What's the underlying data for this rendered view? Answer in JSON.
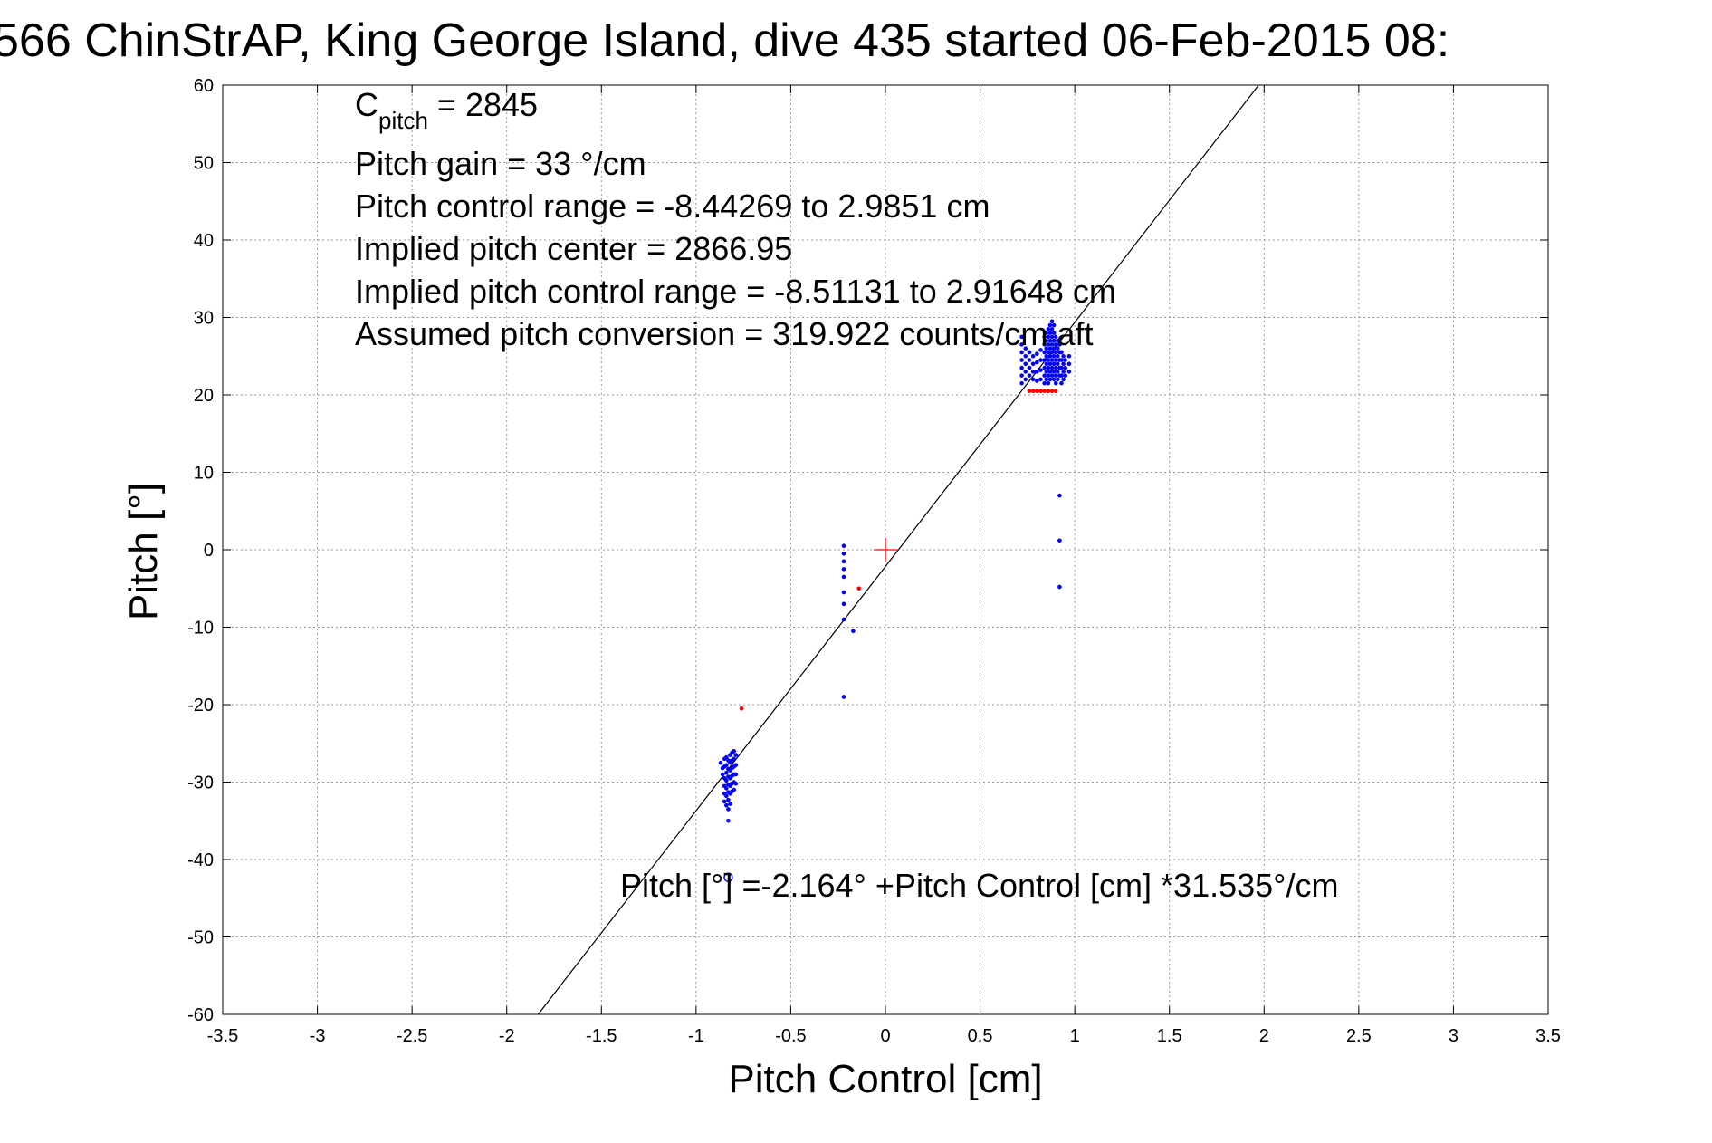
{
  "chart_data": {
    "type": "scatter",
    "title": "566 ChinStrAP, King George Island, dive 435 started 06-Feb-2015 08:",
    "xlabel": "Pitch Control [cm]",
    "ylabel": "Pitch [°]",
    "xlim": [
      -3.5,
      3.5
    ],
    "ylim": [
      -60,
      60
    ],
    "xticks": [
      -3.5,
      -3,
      -2.5,
      -2,
      -1.5,
      -1,
      -0.5,
      0,
      0.5,
      1,
      1.5,
      2,
      2.5,
      3,
      3.5
    ],
    "yticks": [
      -60,
      -50,
      -40,
      -30,
      -20,
      -10,
      0,
      10,
      20,
      30,
      40,
      50,
      60
    ],
    "xtick_labels": [
      "-3.5",
      "-3",
      "-2.5",
      "-2",
      "-1.5",
      "-1",
      "-0.5",
      "0",
      "0.5",
      "1",
      "1.5",
      "2",
      "2.5",
      "3",
      "3.5"
    ],
    "ytick_labels": [
      "-60",
      "-50",
      "-40",
      "-30",
      "-20",
      "-10",
      "0",
      "10",
      "20",
      "30",
      "40",
      "50",
      "60"
    ],
    "grid": true,
    "annotations": {
      "cpitch_prefix": "C",
      "cpitch_sub": "pitch",
      "cpitch_value": " = 2845",
      "line2": "Pitch gain = 33 °/cm",
      "line3": "Pitch control range = -8.44269 to 2.9851 cm",
      "line4": "Implied pitch center = 2866.95",
      "line5": "Implied pitch control range = -8.51131 to 2.91648 cm",
      "line6": "Assumed pitch conversion = 319.922 counts/cm aft",
      "fit_equation": "Pitch [°] =-2.164° +Pitch Control [cm] *31.535°/cm"
    },
    "fit": {
      "intercept": -2.164,
      "slope": 31.535
    },
    "center_marker": {
      "x": 0,
      "y": 0,
      "color": "#ff0000"
    },
    "open_marker": {
      "x": -0.83,
      "y": -42.3,
      "color": "#0000cc"
    },
    "series": [
      {
        "color": "#0000ff",
        "points": [
          [
            -0.87,
            -27.5
          ],
          [
            -0.86,
            -28.2
          ],
          [
            -0.86,
            -29.0
          ],
          [
            -0.85,
            -27.0
          ],
          [
            -0.85,
            -28.0
          ],
          [
            -0.85,
            -29.5
          ],
          [
            -0.85,
            -30.5
          ],
          [
            -0.85,
            -31.5
          ],
          [
            -0.85,
            -32.5
          ],
          [
            -0.84,
            -26.8
          ],
          [
            -0.84,
            -27.8
          ],
          [
            -0.84,
            -28.8
          ],
          [
            -0.84,
            -29.8
          ],
          [
            -0.84,
            -30.8
          ],
          [
            -0.84,
            -31.8
          ],
          [
            -0.84,
            -33.0
          ],
          [
            -0.83,
            -27.2
          ],
          [
            -0.83,
            -28.3
          ],
          [
            -0.83,
            -29.3
          ],
          [
            -0.83,
            -30.3
          ],
          [
            -0.83,
            -31.3
          ],
          [
            -0.83,
            -32.3
          ],
          [
            -0.83,
            -33.5
          ],
          [
            -0.83,
            -35.0
          ],
          [
            -0.82,
            -26.5
          ],
          [
            -0.82,
            -27.5
          ],
          [
            -0.82,
            -28.5
          ],
          [
            -0.82,
            -29.5
          ],
          [
            -0.82,
            -30.5
          ],
          [
            -0.82,
            -31.5
          ],
          [
            -0.82,
            -32.8
          ],
          [
            -0.81,
            -26.2
          ],
          [
            -0.81,
            -27.2
          ],
          [
            -0.81,
            -28.2
          ],
          [
            -0.81,
            -29.2
          ],
          [
            -0.81,
            -30.2
          ],
          [
            -0.81,
            -31.2
          ],
          [
            -0.8,
            -26.0
          ],
          [
            -0.8,
            -27.0
          ],
          [
            -0.8,
            -28.0
          ],
          [
            -0.8,
            -29.0
          ],
          [
            -0.8,
            -30.0
          ],
          [
            -0.8,
            -31.0
          ],
          [
            -0.79,
            -26.5
          ],
          [
            -0.79,
            -27.8
          ],
          [
            -0.79,
            -29.0
          ],
          [
            -0.79,
            -30.2
          ],
          [
            -0.22,
            0.5
          ],
          [
            -0.22,
            -0.5
          ],
          [
            -0.22,
            -1.5
          ],
          [
            -0.22,
            -2.5
          ],
          [
            -0.22,
            -3.5
          ],
          [
            -0.22,
            -5.5
          ],
          [
            -0.22,
            -7.0
          ],
          [
            -0.22,
            -9.0
          ],
          [
            -0.22,
            -19.0
          ],
          [
            -0.17,
            -10.5
          ],
          [
            0.92,
            7.0
          ],
          [
            0.92,
            1.2
          ],
          [
            0.92,
            -4.8
          ],
          [
            0.72,
            21.5
          ],
          [
            0.72,
            22.5
          ],
          [
            0.72,
            23.5
          ],
          [
            0.72,
            24.5
          ],
          [
            0.72,
            25.5
          ],
          [
            0.72,
            26.5
          ],
          [
            0.72,
            27.5
          ],
          [
            0.74,
            22.0
          ],
          [
            0.74,
            23.0
          ],
          [
            0.74,
            24.0
          ],
          [
            0.74,
            25.0
          ],
          [
            0.74,
            26.0
          ],
          [
            0.76,
            22.5
          ],
          [
            0.76,
            23.5
          ],
          [
            0.76,
            24.5
          ],
          [
            0.76,
            25.5
          ],
          [
            0.78,
            22.0
          ],
          [
            0.78,
            23.0
          ],
          [
            0.78,
            24.0
          ],
          [
            0.78,
            25.0
          ],
          [
            0.8,
            21.8
          ],
          [
            0.8,
            23.0
          ],
          [
            0.8,
            24.2
          ],
          [
            0.8,
            25.3
          ],
          [
            0.82,
            22.0
          ],
          [
            0.82,
            23.2
          ],
          [
            0.82,
            24.5
          ],
          [
            0.82,
            25.8
          ],
          [
            0.84,
            21.5
          ],
          [
            0.84,
            22.5
          ],
          [
            0.84,
            23.5
          ],
          [
            0.84,
            24.5
          ],
          [
            0.84,
            25.5
          ],
          [
            0.84,
            26.5
          ],
          [
            0.84,
            27.5
          ],
          [
            0.85,
            22.0
          ],
          [
            0.85,
            23.0
          ],
          [
            0.85,
            24.0
          ],
          [
            0.85,
            25.0
          ],
          [
            0.85,
            26.0
          ],
          [
            0.85,
            27.0
          ],
          [
            0.85,
            28.0
          ],
          [
            0.86,
            21.5
          ],
          [
            0.86,
            22.5
          ],
          [
            0.86,
            23.5
          ],
          [
            0.86,
            24.5
          ],
          [
            0.86,
            25.5
          ],
          [
            0.86,
            26.5
          ],
          [
            0.86,
            27.5
          ],
          [
            0.86,
            28.5
          ],
          [
            0.87,
            22.0
          ],
          [
            0.87,
            23.0
          ],
          [
            0.87,
            24.0
          ],
          [
            0.87,
            25.0
          ],
          [
            0.87,
            26.0
          ],
          [
            0.87,
            27.0
          ],
          [
            0.87,
            28.0
          ],
          [
            0.87,
            29.0
          ],
          [
            0.88,
            22.5
          ],
          [
            0.88,
            23.5
          ],
          [
            0.88,
            24.5
          ],
          [
            0.88,
            25.5
          ],
          [
            0.88,
            26.5
          ],
          [
            0.88,
            27.5
          ],
          [
            0.88,
            28.5
          ],
          [
            0.88,
            29.5
          ],
          [
            0.89,
            22.0
          ],
          [
            0.89,
            23.0
          ],
          [
            0.89,
            24.0
          ],
          [
            0.89,
            25.0
          ],
          [
            0.89,
            26.0
          ],
          [
            0.89,
            27.0
          ],
          [
            0.89,
            28.0
          ],
          [
            0.89,
            29.0
          ],
          [
            0.9,
            21.5
          ],
          [
            0.9,
            22.5
          ],
          [
            0.9,
            23.5
          ],
          [
            0.9,
            24.5
          ],
          [
            0.9,
            25.5
          ],
          [
            0.9,
            26.5
          ],
          [
            0.9,
            27.5
          ],
          [
            0.91,
            22.0
          ],
          [
            0.91,
            23.0
          ],
          [
            0.91,
            24.0
          ],
          [
            0.91,
            25.0
          ],
          [
            0.91,
            26.0
          ],
          [
            0.91,
            27.0
          ],
          [
            0.92,
            22.5
          ],
          [
            0.92,
            23.5
          ],
          [
            0.92,
            24.5
          ],
          [
            0.92,
            25.5
          ],
          [
            0.92,
            26.5
          ],
          [
            0.93,
            21.5
          ],
          [
            0.93,
            22.5
          ],
          [
            0.93,
            23.5
          ],
          [
            0.93,
            24.5
          ],
          [
            0.93,
            25.5
          ],
          [
            0.94,
            22.0
          ],
          [
            0.94,
            23.0
          ],
          [
            0.94,
            24.0
          ],
          [
            0.94,
            25.0
          ],
          [
            0.95,
            22.5
          ],
          [
            0.95,
            23.5
          ],
          [
            0.95,
            24.5
          ],
          [
            0.97,
            23.0
          ],
          [
            0.97,
            24.0
          ],
          [
            0.97,
            25.0
          ]
        ]
      },
      {
        "color": "#ff0000",
        "points": [
          [
            -0.76,
            -20.5
          ],
          [
            -0.14,
            -5.0
          ],
          [
            0.76,
            20.5
          ],
          [
            0.78,
            20.5
          ],
          [
            0.8,
            20.5
          ],
          [
            0.82,
            20.5
          ],
          [
            0.84,
            20.5
          ],
          [
            0.86,
            20.5
          ],
          [
            0.88,
            20.5
          ],
          [
            0.9,
            20.5
          ]
        ]
      }
    ]
  }
}
